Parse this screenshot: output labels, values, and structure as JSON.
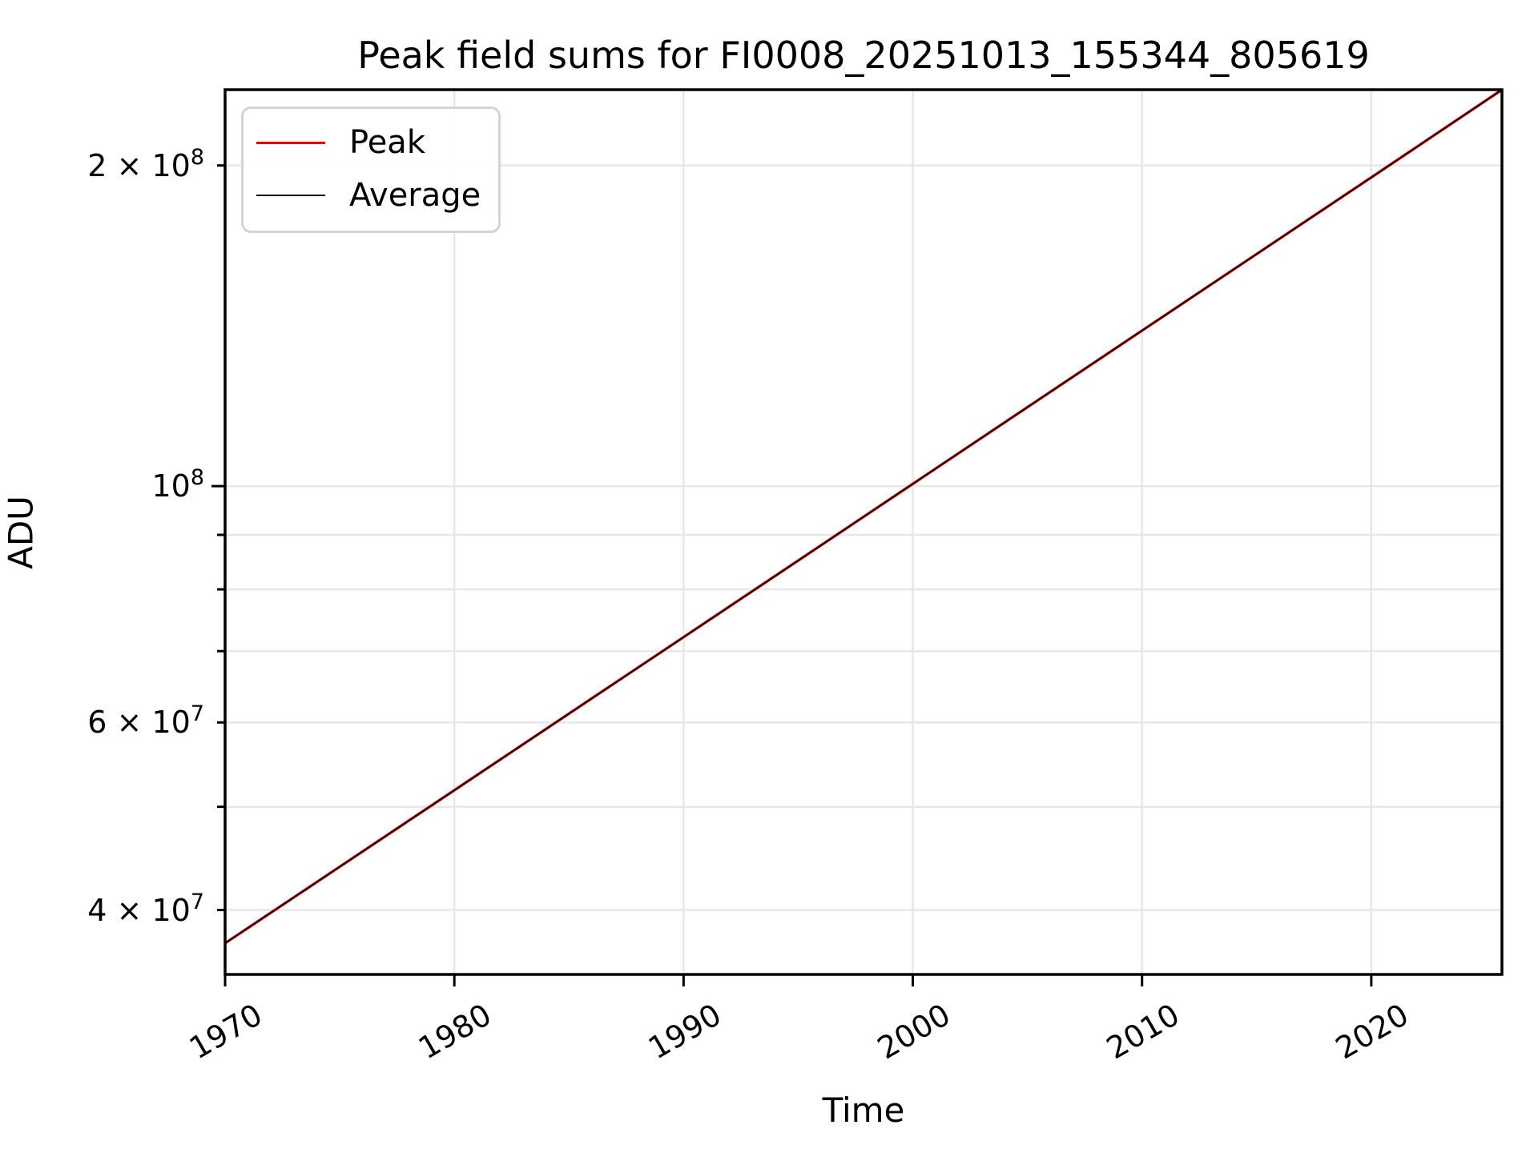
{
  "figure": {
    "title": "Peak field sums for FI0008_20251013_155344_805619",
    "xlabel": "Time",
    "ylabel": "ADU"
  },
  "legend": {
    "items": [
      {
        "label": "Peak",
        "color": "#ff0000"
      },
      {
        "label": "Average",
        "color": "#000000"
      }
    ]
  },
  "chart_data": {
    "type": "line",
    "title": "Peak field sums for FI0008_20251013_155344_805619",
    "xlabel": "Time",
    "ylabel": "ADU",
    "xscale": "linear",
    "yscale": "log",
    "xlim": [
      1970,
      2025.7
    ],
    "ylim": [
      34800000,
      235600000
    ],
    "grid": "both",
    "grid_color": "#e7e7e7",
    "spine_color": "#000000",
    "background_color": "#ffffff",
    "legend_position": "upper-left",
    "x": [
      1970,
      1975,
      1980,
      1985,
      1990,
      1995,
      2000,
      2005,
      2010,
      2015,
      2020,
      2025.7
    ],
    "series": [
      {
        "name": "Peak",
        "color": "#ff0000",
        "line_width": 3.4,
        "values": [
          37230000,
          43920000,
          51820000,
          61150000,
          72150000,
          85140000,
          100490000,
          118600000,
          139960000,
          165160000,
          194900000,
          235560000
        ]
      },
      {
        "name": "Average",
        "color": "#000000",
        "line_width": 1.8,
        "values": [
          37230000,
          43920000,
          51820000,
          61150000,
          72150000,
          85140000,
          100490000,
          118600000,
          139960000,
          165160000,
          194900000,
          235560000
        ]
      }
    ],
    "x_ticks": [
      {
        "value": 1970,
        "label": "1970"
      },
      {
        "value": 1980,
        "label": "1980"
      },
      {
        "value": 1990,
        "label": "1990"
      },
      {
        "value": 2000,
        "label": "2000"
      },
      {
        "value": 2010,
        "label": "2010"
      },
      {
        "value": 2020,
        "label": "2020"
      }
    ],
    "y_ticks": [
      {
        "value": 200000000,
        "mantissa": "2 × 10",
        "exponent": "8",
        "major": false
      },
      {
        "value": 100000000,
        "mantissa": "10",
        "exponent": "8",
        "major": true
      },
      {
        "value": 90000000,
        "mantissa": "",
        "exponent": "",
        "major": false
      },
      {
        "value": 80000000,
        "mantissa": "",
        "exponent": "",
        "major": false
      },
      {
        "value": 70000000,
        "mantissa": "",
        "exponent": "",
        "major": false
      },
      {
        "value": 60000000,
        "mantissa": "6 × 10",
        "exponent": "7",
        "major": false
      },
      {
        "value": 50000000,
        "mantissa": "",
        "exponent": "",
        "major": false
      },
      {
        "value": 40000000,
        "mantissa": "4 × 10",
        "exponent": "7",
        "major": false
      }
    ]
  }
}
